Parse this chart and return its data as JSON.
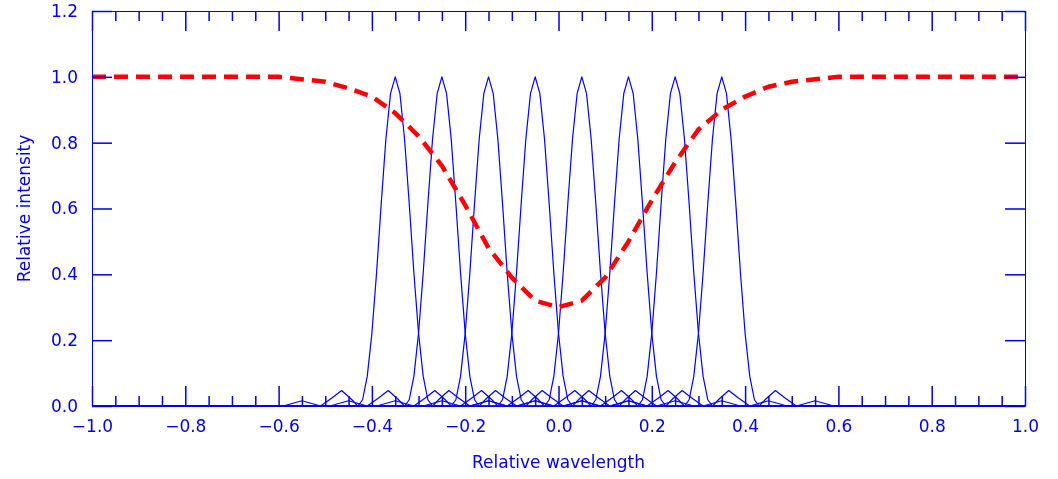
{
  "chart_data": {
    "type": "line",
    "xlabel": "Relative wavelength",
    "ylabel": "Relative intensity",
    "xlim": [
      -1,
      1
    ],
    "ylim": [
      0,
      1.2
    ],
    "xticks": [
      {
        "value": -1,
        "label": "−1.0"
      },
      {
        "value": -0.95,
        "label": null
      },
      {
        "value": -0.9,
        "label": null
      },
      {
        "value": -0.85,
        "label": null
      },
      {
        "value": -0.8,
        "label": "−0.8"
      },
      {
        "value": -0.75,
        "label": null
      },
      {
        "value": -0.7,
        "label": null
      },
      {
        "value": -0.65,
        "label": null
      },
      {
        "value": -0.6,
        "label": "−0.6"
      },
      {
        "value": -0.55,
        "label": null
      },
      {
        "value": -0.5,
        "label": null
      },
      {
        "value": -0.45,
        "label": null
      },
      {
        "value": -0.4,
        "label": "−0.4"
      },
      {
        "value": -0.35,
        "label": null
      },
      {
        "value": -0.3,
        "label": null
      },
      {
        "value": -0.25,
        "label": null
      },
      {
        "value": -0.2,
        "label": "−0.2"
      },
      {
        "value": -0.15,
        "label": null
      },
      {
        "value": -0.1,
        "label": null
      },
      {
        "value": -0.05,
        "label": null
      },
      {
        "value": 0,
        "label": "0.0"
      },
      {
        "value": 0.05,
        "label": null
      },
      {
        "value": 0.1,
        "label": null
      },
      {
        "value": 0.15,
        "label": null
      },
      {
        "value": 0.2,
        "label": "0.2"
      },
      {
        "value": 0.25,
        "label": null
      },
      {
        "value": 0.3,
        "label": null
      },
      {
        "value": 0.35,
        "label": null
      },
      {
        "value": 0.4,
        "label": "0.4"
      },
      {
        "value": 0.45,
        "label": null
      },
      {
        "value": 0.5,
        "label": null
      },
      {
        "value": 0.55,
        "label": null
      },
      {
        "value": 0.6,
        "label": "0.6"
      },
      {
        "value": 0.65,
        "label": null
      },
      {
        "value": 0.7,
        "label": null
      },
      {
        "value": 0.75,
        "label": null
      },
      {
        "value": 0.8,
        "label": "0.8"
      },
      {
        "value": 0.85,
        "label": null
      },
      {
        "value": 0.9,
        "label": null
      },
      {
        "value": 0.95,
        "label": null
      },
      {
        "value": 1,
        "label": "1.0"
      }
    ],
    "yticks": [
      {
        "value": 0,
        "label": "0.0"
      },
      {
        "value": 0.2,
        "label": "0.2"
      },
      {
        "value": 0.4,
        "label": "0.4"
      },
      {
        "value": 0.6,
        "label": "0.6"
      },
      {
        "value": 0.8,
        "label": "0.8"
      },
      {
        "value": 1,
        "label": "1.0"
      },
      {
        "value": 1.2,
        "label": "1.2"
      }
    ],
    "grid": false,
    "series": [
      {
        "color": "#0000ff",
        "line_style": "solid",
        "x": [
          -1,
          -0.59,
          -0.55,
          -0.51,
          -0.485,
          -0.465,
          -0.445,
          -0.43,
          -0.42,
          -0.41,
          -0.4,
          -0.39,
          -0.38,
          -0.37,
          -0.36,
          -0.35,
          -0.34,
          -0.33,
          -0.32,
          -0.31,
          -0.3,
          -0.29,
          -0.28,
          -0.27,
          -0.255,
          -0.235,
          -0.215,
          -0.19,
          -0.15,
          -0.11,
          1
        ],
        "values": [
          0,
          0,
          0.016,
          0,
          0.025,
          0.047,
          0.022,
          0,
          0.019,
          0.09,
          0.221,
          0.405,
          0.615,
          0.811,
          0.95,
          1,
          0.95,
          0.811,
          0.615,
          0.405,
          0.221,
          0.09,
          0.019,
          0,
          0.022,
          0.047,
          0.025,
          0,
          0.016,
          0,
          0
        ]
      },
      {
        "color": "#0000ff",
        "line_style": "solid",
        "x": [
          -1,
          -0.49,
          -0.45,
          -0.41,
          -0.385,
          -0.365,
          -0.345,
          -0.33,
          -0.32,
          -0.31,
          -0.3,
          -0.29,
          -0.28,
          -0.27,
          -0.26,
          -0.25,
          -0.24,
          -0.23,
          -0.22,
          -0.21,
          -0.2,
          -0.19,
          -0.18,
          -0.17,
          -0.155,
          -0.135,
          -0.115,
          -0.09,
          -0.05,
          -0.01,
          1
        ],
        "values": [
          0,
          0,
          0.016,
          0,
          0.025,
          0.047,
          0.022,
          0,
          0.019,
          0.09,
          0.221,
          0.405,
          0.615,
          0.811,
          0.95,
          1,
          0.95,
          0.811,
          0.615,
          0.405,
          0.221,
          0.09,
          0.019,
          0,
          0.022,
          0.047,
          0.025,
          0,
          0.016,
          0,
          0
        ]
      },
      {
        "color": "#0000ff",
        "line_style": "solid",
        "x": [
          -1,
          -0.39,
          -0.35,
          -0.31,
          -0.285,
          -0.265,
          -0.245,
          -0.23,
          -0.22,
          -0.21,
          -0.2,
          -0.19,
          -0.18,
          -0.17,
          -0.16,
          -0.15,
          -0.14,
          -0.13,
          -0.12,
          -0.11,
          -0.1,
          -0.09,
          -0.08,
          -0.07,
          -0.055,
          -0.035,
          -0.015,
          0.01,
          0.05,
          0.09,
          1
        ],
        "values": [
          0,
          0,
          0.016,
          0,
          0.025,
          0.047,
          0.022,
          0,
          0.019,
          0.09,
          0.221,
          0.405,
          0.615,
          0.811,
          0.95,
          1,
          0.95,
          0.811,
          0.615,
          0.405,
          0.221,
          0.09,
          0.019,
          0,
          0.022,
          0.047,
          0.025,
          0,
          0.016,
          0,
          0
        ]
      },
      {
        "color": "#0000ff",
        "line_style": "solid",
        "x": [
          -1,
          -0.29,
          -0.25,
          -0.21,
          -0.185,
          -0.165,
          -0.145,
          -0.13,
          -0.12,
          -0.11,
          -0.1,
          -0.09,
          -0.08,
          -0.07,
          -0.06,
          -0.05,
          -0.04,
          -0.03,
          -0.02,
          -0.01,
          0,
          0.01,
          0.02,
          0.03,
          0.045,
          0.065,
          0.085,
          0.11,
          0.15,
          0.19,
          1
        ],
        "values": [
          0,
          0,
          0.016,
          0,
          0.025,
          0.047,
          0.022,
          0,
          0.019,
          0.09,
          0.221,
          0.405,
          0.615,
          0.811,
          0.95,
          1,
          0.95,
          0.811,
          0.615,
          0.405,
          0.221,
          0.09,
          0.019,
          0,
          0.022,
          0.047,
          0.025,
          0,
          0.016,
          0,
          0
        ]
      },
      {
        "color": "#0000ff",
        "line_style": "solid",
        "x": [
          -1,
          -0.19,
          -0.15,
          -0.11,
          -0.085,
          -0.065,
          -0.045,
          -0.03,
          -0.02,
          -0.01,
          0,
          0.01,
          0.02,
          0.03,
          0.04,
          0.05,
          0.06,
          0.07,
          0.08,
          0.09,
          0.1,
          0.11,
          0.12,
          0.13,
          0.145,
          0.165,
          0.185,
          0.21,
          0.25,
          0.29,
          1
        ],
        "values": [
          0,
          0,
          0.016,
          0,
          0.025,
          0.047,
          0.022,
          0,
          0.019,
          0.09,
          0.221,
          0.405,
          0.615,
          0.811,
          0.95,
          1,
          0.95,
          0.811,
          0.615,
          0.405,
          0.221,
          0.09,
          0.019,
          0,
          0.022,
          0.047,
          0.025,
          0,
          0.016,
          0,
          0
        ]
      },
      {
        "color": "#0000ff",
        "line_style": "solid",
        "x": [
          -1,
          -0.09,
          -0.05,
          -0.01,
          0.015,
          0.035,
          0.055,
          0.07,
          0.08,
          0.09,
          0.1,
          0.11,
          0.12,
          0.13,
          0.14,
          0.15,
          0.16,
          0.17,
          0.18,
          0.19,
          0.2,
          0.21,
          0.22,
          0.23,
          0.245,
          0.265,
          0.285,
          0.31,
          0.35,
          0.39,
          1
        ],
        "values": [
          0,
          0,
          0.016,
          0,
          0.025,
          0.047,
          0.022,
          0,
          0.019,
          0.09,
          0.221,
          0.405,
          0.615,
          0.811,
          0.95,
          1,
          0.95,
          0.811,
          0.615,
          0.405,
          0.221,
          0.09,
          0.019,
          0,
          0.022,
          0.047,
          0.025,
          0,
          0.016,
          0,
          0
        ]
      },
      {
        "color": "#0000ff",
        "line_style": "solid",
        "x": [
          -1,
          0.01,
          0.05,
          0.09,
          0.115,
          0.135,
          0.155,
          0.17,
          0.18,
          0.19,
          0.2,
          0.21,
          0.22,
          0.23,
          0.24,
          0.25,
          0.26,
          0.27,
          0.28,
          0.29,
          0.3,
          0.31,
          0.32,
          0.33,
          0.345,
          0.365,
          0.385,
          0.41,
          0.45,
          0.49,
          1
        ],
        "values": [
          0,
          0,
          0.016,
          0,
          0.025,
          0.047,
          0.022,
          0,
          0.019,
          0.09,
          0.221,
          0.405,
          0.615,
          0.811,
          0.95,
          1,
          0.95,
          0.811,
          0.615,
          0.405,
          0.221,
          0.09,
          0.019,
          0,
          0.022,
          0.047,
          0.025,
          0,
          0.016,
          0,
          0
        ]
      },
      {
        "color": "#0000ff",
        "line_style": "solid",
        "x": [
          -1,
          0.11,
          0.15,
          0.19,
          0.215,
          0.235,
          0.255,
          0.27,
          0.28,
          0.29,
          0.3,
          0.31,
          0.32,
          0.33,
          0.34,
          0.35,
          0.36,
          0.37,
          0.38,
          0.39,
          0.4,
          0.41,
          0.42,
          0.43,
          0.445,
          0.465,
          0.485,
          0.51,
          0.55,
          0.59,
          1
        ],
        "values": [
          0,
          0,
          0.016,
          0,
          0.025,
          0.047,
          0.022,
          0,
          0.019,
          0.09,
          0.221,
          0.405,
          0.615,
          0.811,
          0.95,
          1,
          0.95,
          0.811,
          0.615,
          0.405,
          0.221,
          0.09,
          0.019,
          0,
          0.022,
          0.047,
          0.025,
          0,
          0.016,
          0,
          0
        ]
      },
      {
        "color": "#ff0000",
        "line_style": "dashed",
        "x": [
          -1,
          -0.6,
          -0.5,
          -0.45,
          -0.4,
          -0.35,
          -0.3,
          -0.25,
          -0.2,
          -0.15,
          -0.1,
          -0.05,
          0,
          0.05,
          0.1,
          0.15,
          0.2,
          0.25,
          0.3,
          0.35,
          0.4,
          0.45,
          0.5,
          0.6,
          1
        ],
        "values": [
          1,
          1,
          0.985,
          0.965,
          0.94,
          0.89,
          0.82,
          0.73,
          0.61,
          0.48,
          0.39,
          0.32,
          0.3,
          0.32,
          0.39,
          0.5,
          0.625,
          0.74,
          0.84,
          0.9,
          0.94,
          0.97,
          0.985,
          1,
          1
        ]
      }
    ]
  }
}
